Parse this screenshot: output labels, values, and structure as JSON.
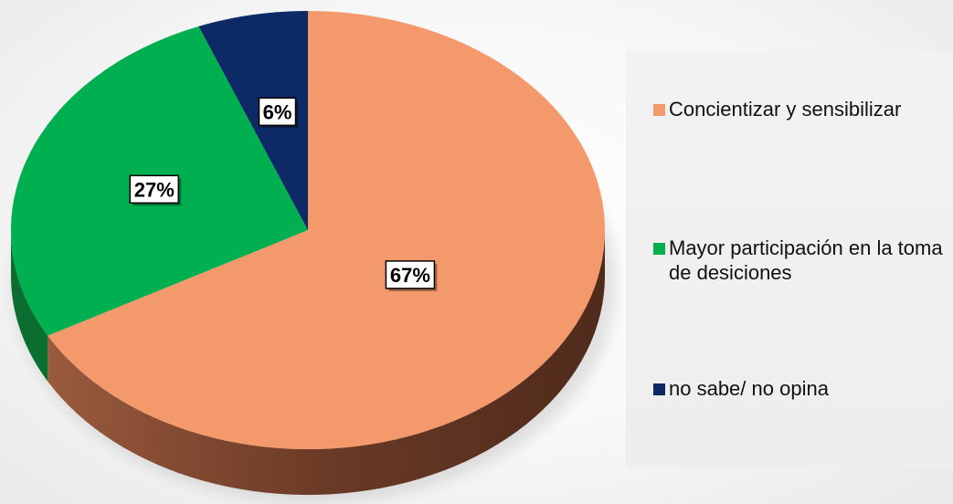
{
  "chart_data": {
    "type": "pie",
    "title": "",
    "categories": [
      "Concientizar y sensibilizar",
      "Mayor participación en la toma de desiciones",
      "no sabe/ no opina"
    ],
    "values": [
      67,
      27,
      6
    ],
    "data_labels": [
      "67%",
      "27%",
      "6%"
    ],
    "colors": [
      "#F4996C",
      "#00B050",
      "#0E2A66"
    ],
    "side_colors": [
      "#8C4A32",
      "#0A6E31",
      "#09183D"
    ],
    "style": "3d",
    "legend_position": "right"
  }
}
